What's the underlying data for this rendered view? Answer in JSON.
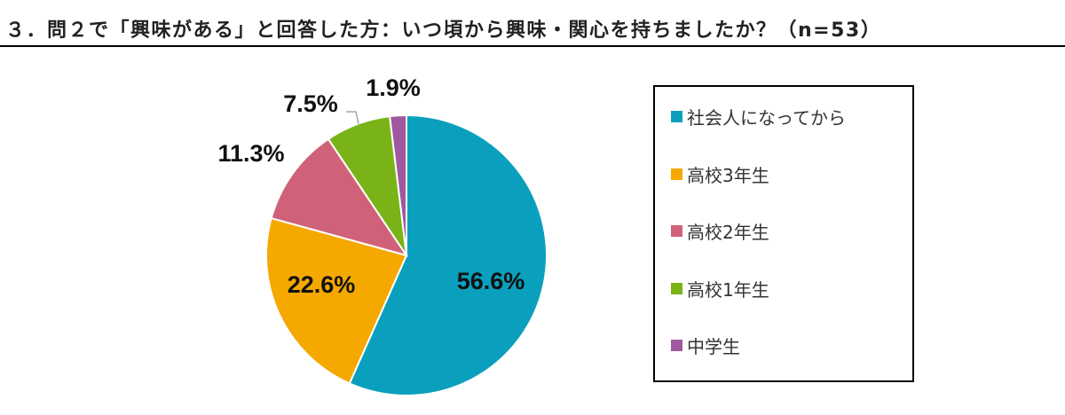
{
  "title": "３．問２で「興味がある」と回答した方：いつ頃から興味・関心を持ちましたか？（n=53）",
  "chart_data": {
    "type": "pie",
    "categories": [
      "社会人になってから",
      "高校3年生",
      "高校2年生",
      "高校1年生",
      "中学生"
    ],
    "values": [
      56.6,
      22.6,
      11.3,
      7.5,
      1.9
    ],
    "labels": [
      "56.6%",
      "22.6%",
      "11.3%",
      "7.5%",
      "1.9%"
    ],
    "colors": [
      "#0aa0bd",
      "#f5a800",
      "#cf6279",
      "#7ab317",
      "#a0589e"
    ],
    "legend_position": "right",
    "start_angle": "12 o'clock, clockwise"
  }
}
